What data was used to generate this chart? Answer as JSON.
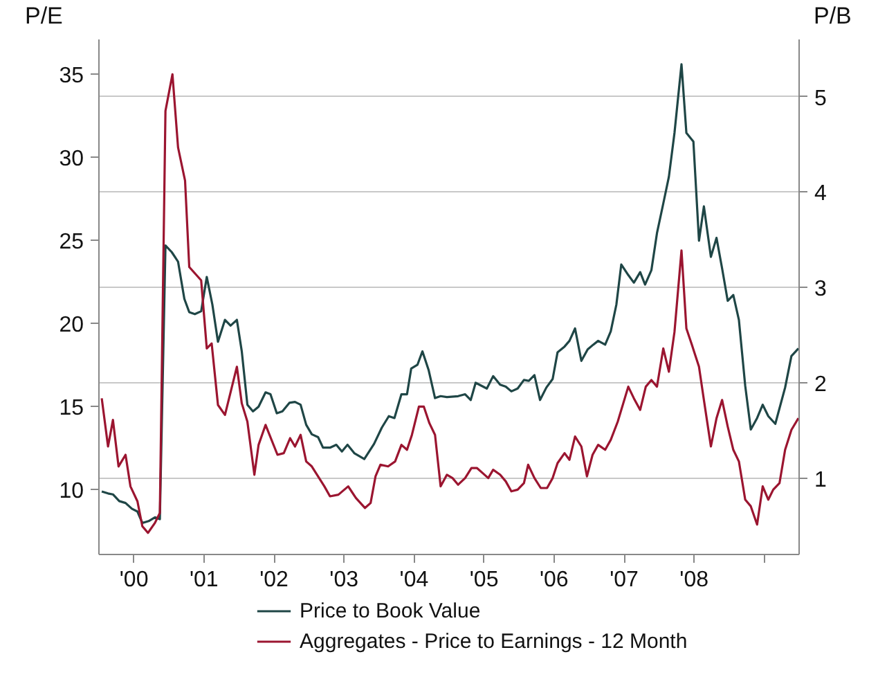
{
  "chart_data": {
    "type": "line",
    "ylabel": "P/E",
    "y2label": "P/B",
    "xlim": [
      1999.5,
      2009.5
    ],
    "ylim": [
      6.1,
      37.1
    ],
    "y2lim": [
      0.2,
      5.6
    ],
    "xticks": [
      {
        "value": 2000,
        "label": "'00"
      },
      {
        "value": 2001,
        "label": "'01"
      },
      {
        "value": 2002,
        "label": "'02"
      },
      {
        "value": 2003,
        "label": "'03"
      },
      {
        "value": 2004,
        "label": "'04"
      },
      {
        "value": 2005,
        "label": "'05"
      },
      {
        "value": 2006,
        "label": "'06"
      },
      {
        "value": 2007,
        "label": "'07"
      },
      {
        "value": 2008,
        "label": "'08"
      },
      {
        "value": 2009,
        "label": null
      }
    ],
    "yticks": [
      10,
      15,
      20,
      25,
      30,
      35
    ],
    "y2ticks": [
      1,
      2,
      3,
      4,
      5
    ],
    "grid": "y",
    "legend": "bottom",
    "line_style": "solid",
    "series": [
      {
        "name": "Price to Book Value",
        "color": "#1f4646",
        "axis": "y2",
        "x": [
          1999.54,
          1999.63,
          1999.7,
          1999.79,
          1999.88,
          1999.97,
          2000.05,
          2000.12,
          2000.21,
          2000.3,
          2000.37,
          2000.45,
          2000.54,
          2000.63,
          2000.72,
          2000.79,
          2000.87,
          2000.96,
          2001.04,
          2001.12,
          2001.2,
          2001.3,
          2001.38,
          2001.47,
          2001.54,
          2001.62,
          2001.7,
          2001.78,
          2001.88,
          2001.95,
          2002.04,
          2002.12,
          2002.22,
          2002.3,
          2002.38,
          2002.46,
          2002.54,
          2002.63,
          2002.7,
          2002.8,
          2002.89,
          2002.97,
          2003.05,
          2003.15,
          2003.29,
          2003.43,
          2003.54,
          2003.64,
          2003.72,
          2003.82,
          2003.9,
          2003.96,
          2004.05,
          2004.12,
          2004.21,
          2004.3,
          2004.38,
          2004.47,
          2004.63,
          2004.73,
          2004.81,
          2004.88,
          2005.04,
          2005.13,
          2005.23,
          2005.31,
          2005.39,
          2005.48,
          2005.57,
          2005.64,
          2005.72,
          2005.8,
          2005.89,
          2005.98,
          2006.05,
          2006.15,
          2006.22,
          2006.3,
          2006.39,
          2006.48,
          2006.56,
          2006.63,
          2006.73,
          2006.81,
          2006.89,
          2006.96,
          2007.06,
          2007.14,
          2007.23,
          2007.3,
          2007.39,
          2007.47,
          2007.56,
          2007.64,
          2007.72,
          2007.82,
          2007.89,
          2007.99,
          2008.07,
          2008.14,
          2008.24,
          2008.32,
          2008.4,
          2008.48,
          2008.56,
          2008.64,
          2008.73,
          2008.81,
          2008.9,
          2008.98,
          2009.06,
          2009.16,
          2009.3,
          2009.39,
          2009.49
        ],
        "values": [
          0.86,
          0.84,
          0.83,
          0.76,
          0.74,
          0.68,
          0.65,
          0.53,
          0.55,
          0.59,
          0.57,
          3.44,
          3.37,
          3.27,
          2.88,
          2.74,
          2.72,
          2.75,
          3.11,
          2.82,
          2.43,
          2.66,
          2.6,
          2.66,
          2.33,
          1.77,
          1.7,
          1.75,
          1.9,
          1.88,
          1.68,
          1.7,
          1.79,
          1.8,
          1.77,
          1.56,
          1.46,
          1.43,
          1.32,
          1.32,
          1.35,
          1.28,
          1.35,
          1.26,
          1.2,
          1.36,
          1.53,
          1.65,
          1.63,
          1.88,
          1.88,
          2.15,
          2.19,
          2.33,
          2.13,
          1.84,
          1.86,
          1.85,
          1.86,
          1.88,
          1.82,
          2.0,
          1.94,
          2.07,
          1.98,
          1.96,
          1.91,
          1.94,
          2.03,
          2.02,
          2.08,
          1.82,
          1.95,
          2.04,
          2.32,
          2.38,
          2.44,
          2.57,
          2.23,
          2.35,
          2.4,
          2.44,
          2.4,
          2.54,
          2.82,
          3.24,
          3.13,
          3.05,
          3.16,
          3.03,
          3.18,
          3.57,
          3.88,
          4.16,
          4.62,
          5.34,
          4.62,
          4.53,
          3.49,
          3.85,
          3.32,
          3.52,
          3.2,
          2.86,
          2.92,
          2.66,
          1.97,
          1.51,
          1.63,
          1.77,
          1.65,
          1.57,
          1.95,
          2.28,
          2.36
        ]
      },
      {
        "name": "Aggregates - Price to Earnings - 12 Month",
        "color": "#9b1530",
        "axis": "y",
        "x": [
          1999.54,
          1999.63,
          1999.7,
          1999.78,
          1999.88,
          1999.95,
          2000.05,
          2000.12,
          2000.2,
          2000.3,
          2000.37,
          2000.45,
          2000.55,
          2000.63,
          2000.73,
          2000.79,
          2000.96,
          2001.04,
          2001.11,
          2001.2,
          2001.3,
          2001.47,
          2001.54,
          2001.62,
          2001.72,
          2001.78,
          2001.88,
          2002.05,
          2002.14,
          2002.23,
          2002.3,
          2002.38,
          2002.46,
          2002.54,
          2002.72,
          2002.8,
          2002.92,
          2003.06,
          2003.17,
          2003.3,
          2003.38,
          2003.45,
          2003.52,
          2003.63,
          2003.73,
          2003.82,
          2003.9,
          2003.97,
          2004.07,
          2004.14,
          2004.22,
          2004.3,
          2004.38,
          2004.47,
          2004.55,
          2004.63,
          2004.73,
          2004.82,
          2004.9,
          2004.98,
          2005.06,
          2005.13,
          2005.23,
          2005.31,
          2005.39,
          2005.48,
          2005.57,
          2005.63,
          2005.72,
          2005.81,
          2005.9,
          2005.98,
          2006.05,
          2006.15,
          2006.22,
          2006.3,
          2006.39,
          2006.47,
          2006.55,
          2006.63,
          2006.73,
          2006.81,
          2006.91,
          2007.06,
          2007.14,
          2007.23,
          2007.31,
          2007.39,
          2007.47,
          2007.56,
          2007.64,
          2007.72,
          2007.82,
          2007.89,
          2007.97,
          2008.07,
          2008.14,
          2008.24,
          2008.32,
          2008.4,
          2008.48,
          2008.56,
          2008.64,
          2008.73,
          2008.81,
          2008.9,
          2008.98,
          2009.06,
          2009.13,
          2009.22,
          2009.3,
          2009.39,
          2009.49
        ],
        "values": [
          15.5,
          12.6,
          14.2,
          11.4,
          12.1,
          10.2,
          9.3,
          7.8,
          7.4,
          8.0,
          8.6,
          32.8,
          35.0,
          30.6,
          28.6,
          23.4,
          22.6,
          18.5,
          18.8,
          15.1,
          14.5,
          17.4,
          15.2,
          14.1,
          10.9,
          12.7,
          13.9,
          12.1,
          12.2,
          13.1,
          12.6,
          13.3,
          11.7,
          11.4,
          10.2,
          9.6,
          9.7,
          10.2,
          9.5,
          8.9,
          9.2,
          10.8,
          11.5,
          11.4,
          11.7,
          12.7,
          12.4,
          13.3,
          15.0,
          15.0,
          14.0,
          13.3,
          10.2,
          10.9,
          10.7,
          10.3,
          10.7,
          11.3,
          11.3,
          11.0,
          10.7,
          11.2,
          10.9,
          10.5,
          9.9,
          10.0,
          10.4,
          11.5,
          10.7,
          10.1,
          10.1,
          10.7,
          11.6,
          12.2,
          11.8,
          13.2,
          12.6,
          10.8,
          12.1,
          12.7,
          12.4,
          13.0,
          14.1,
          16.2,
          15.5,
          14.8,
          16.2,
          16.6,
          16.2,
          18.5,
          17.1,
          19.5,
          24.4,
          19.7,
          18.7,
          17.4,
          15.4,
          12.6,
          14.3,
          15.4,
          13.8,
          12.4,
          11.7,
          9.4,
          9.0,
          7.9,
          10.2,
          9.4,
          10.0,
          10.4,
          12.4,
          13.6,
          14.3
        ]
      }
    ]
  }
}
